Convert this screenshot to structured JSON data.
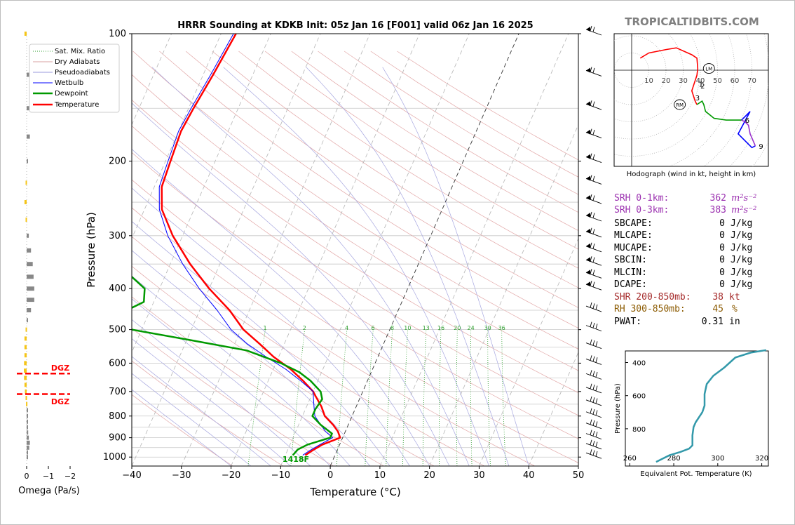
{
  "brand": "TROPICALTIDBITS.COM",
  "main_chart": {
    "title": "HRRR Sounding at KDKB Init: 05z Jan 16 [F001] valid 06z Jan 16 2025",
    "xlabel": "Temperature (°C)",
    "ylabel": "Pressure (hPa)",
    "x_ticks": [
      -40,
      -30,
      -20,
      -10,
      0,
      10,
      20,
      30,
      40,
      50
    ],
    "x_tick_labels": [
      "−40",
      "−30",
      "−20",
      "−10",
      "0",
      "10",
      "20",
      "30",
      "40",
      "50"
    ],
    "y_ticks": [
      100,
      200,
      300,
      400,
      500,
      600,
      700,
      800,
      900,
      1000
    ],
    "xlim": [
      -40,
      50
    ],
    "ylim": [
      1050,
      100
    ],
    "legend": {
      "placement": "top-left",
      "entries": [
        {
          "label": "Sat. Mix. Ratio",
          "color": "#2e9e2e",
          "style": "dotted"
        },
        {
          "label": "Dry Adiabats",
          "color": "#d9a0a0",
          "style": "solid"
        },
        {
          "label": "Pseudoadiabats",
          "color": "#9999dd",
          "style": "solid"
        },
        {
          "label": "Wetbulb",
          "color": "#0000ff",
          "style": "solid"
        },
        {
          "label": "Dewpoint",
          "color": "#009900",
          "style": "solid"
        },
        {
          "label": "Temperature",
          "color": "#ff0000",
          "style": "solid"
        }
      ]
    },
    "mixing_ratio_labels": [
      "1",
      "2",
      "4",
      "6",
      "8",
      "10",
      "13",
      "16",
      "20",
      "24",
      "30",
      "36"
    ],
    "surface_label": "1418F"
  },
  "omega_panel": {
    "xlabel": "Omega (Pa/s)",
    "x_tick_labels": [
      "0",
      "−1",
      "−2"
    ],
    "dgz_label": "DGZ",
    "dgz_top_hpa": 635,
    "dgz_bottom_hpa": 710
  },
  "hodograph": {
    "caption": "Hodograph (wind in kt, height in km)",
    "ring_labels": [
      "10",
      "20",
      "30",
      "40",
      "50",
      "60",
      "70"
    ],
    "height_labels": [
      "1",
      "2",
      "3",
      "6",
      "9"
    ],
    "lm_label": "LM",
    "rm_label": "RM"
  },
  "indices": [
    {
      "label": "SRH 0-1km:",
      "value": "362",
      "unit": "m²s⁻²",
      "color": "#9b30b0"
    },
    {
      "label": "SRH 0-3km:",
      "value": "383",
      "unit": "m²s⁻²",
      "color": "#9b30b0"
    },
    {
      "label": "SBCAPE:",
      "value": "0",
      "unit": "J/kg",
      "color": "#000000"
    },
    {
      "label": "MLCAPE:",
      "value": "0",
      "unit": "J/kg",
      "color": "#000000"
    },
    {
      "label": "MUCAPE:",
      "value": "0",
      "unit": "J/kg",
      "color": "#000000"
    },
    {
      "label": "SBCIN:",
      "value": "0",
      "unit": "J/kg",
      "color": "#000000"
    },
    {
      "label": "MLCIN:",
      "value": "0",
      "unit": "J/kg",
      "color": "#000000"
    },
    {
      "label": "DCAPE:",
      "value": "0",
      "unit": "J/kg",
      "color": "#000000"
    },
    {
      "label": "SHR 200-850mb:",
      "value": "38",
      "unit": "kt",
      "color": "#a52a2a"
    },
    {
      "label": "RH 300-850mb:",
      "value": "45",
      "unit": "%",
      "color": "#8b5a00"
    },
    {
      "label": "PWAT:",
      "value": "0.31",
      "unit": "in",
      "color": "#000000"
    }
  ],
  "theta_e_panel": {
    "xlabel": "Equivalent Pot. Temperature (K)",
    "ylabel": "Pressure (hPa)",
    "x_ticks": [
      260,
      280,
      300,
      320
    ],
    "y_ticks": [
      400,
      600,
      800
    ],
    "y_tick_labels": [
      "400",
      "600",
      "800"
    ],
    "xlim": [
      258,
      323
    ],
    "ylim": [
      1025,
      330
    ],
    "line_color": "#3399aa"
  },
  "chart_data": [
    {
      "type": "line",
      "title": "HRRR Sounding at KDKB Init: 05z Jan 16 [F001] valid 06z Jan 16 2025",
      "xlabel": "Temperature (°C)",
      "ylabel": "Pressure (hPa)",
      "xlim": [
        -40,
        50
      ],
      "ylim": [
        1050,
        100
      ],
      "y_scale": "log",
      "skew": true,
      "grid": true,
      "legend_position": "top-left",
      "series": [
        {
          "name": "Temperature",
          "color": "#ff0000",
          "pressure": [
            990,
            965,
            935,
            900,
            870,
            840,
            800,
            760,
            720,
            700,
            660,
            620,
            580,
            540,
            500,
            450,
            400,
            350,
            300,
            260,
            230,
            200,
            170,
            150,
            125,
            100
          ],
          "values": [
            -6,
            -5,
            -3.5,
            -0.5,
            -1.5,
            -3,
            -5.5,
            -7,
            -9,
            -10,
            -13,
            -16.5,
            -21,
            -25,
            -29.5,
            -34,
            -40,
            -46,
            -52,
            -56.5,
            -58.5,
            -59,
            -59.5,
            -59,
            -58,
            -57
          ]
        },
        {
          "name": "Wetbulb",
          "color": "#0000ff",
          "pressure": [
            990,
            965,
            935,
            900,
            870,
            840,
            800,
            760,
            720,
            700,
            660,
            620,
            580,
            540,
            500,
            450,
            400,
            350,
            300,
            260,
            230,
            200,
            170,
            150,
            125,
            100
          ],
          "values": [
            -6.5,
            -5.5,
            -4,
            -2,
            -4,
            -5.5,
            -7.5,
            -8.5,
            -9.5,
            -10,
            -13.5,
            -17.5,
            -22.5,
            -27.5,
            -32,
            -36.5,
            -42,
            -47.5,
            -53,
            -57,
            -59,
            -59.5,
            -60,
            -59.5,
            -58.5,
            -57.5
          ]
        },
        {
          "name": "Dewpoint",
          "color": "#009900",
          "pressure": [
            990,
            960,
            935,
            900,
            880,
            840,
            800,
            770,
            730,
            700,
            660,
            630,
            600,
            560,
            530,
            500,
            460,
            430,
            400,
            360,
            330,
            300,
            280,
            250,
            220,
            200,
            180,
            160,
            140,
            120,
            100
          ],
          "values": [
            -8.5,
            -8,
            -6.5,
            -2.5,
            -2.5,
            -5.5,
            -8,
            -8,
            -7.5,
            -8.5,
            -11.5,
            -14.5,
            -19,
            -27,
            -39,
            -52,
            -56,
            -52,
            -53,
            -59,
            -68,
            -74,
            -75.5,
            -73,
            -79,
            -79.5,
            -80,
            -80.5,
            -80.5,
            -80,
            -79.5
          ]
        }
      ]
    },
    {
      "type": "scatter",
      "title": "Hodograph",
      "xlabel": "u (kt)",
      "ylabel": "v (kt)",
      "series": [
        {
          "name": "0-1 km",
          "color": "#ff0000",
          "x": [
            5,
            10,
            20,
            26,
            35,
            38,
            38.5,
            38,
            37
          ],
          "y": [
            7,
            10,
            12,
            13,
            9,
            7,
            1,
            -3,
            -6
          ]
        },
        {
          "name": "1-3 km",
          "color": "#ff0000",
          "x": [
            37,
            36,
            35,
            36,
            37,
            38
          ],
          "y": [
            -6,
            -9,
            -12,
            -15,
            -18,
            -20
          ]
        },
        {
          "name": "3-6 km",
          "color": "#009900",
          "x": [
            38,
            41,
            42,
            43,
            48,
            55,
            64
          ],
          "y": [
            -20,
            -18,
            -20,
            -24,
            -28,
            -29,
            -29
          ]
        },
        {
          "name": "6-9 km",
          "color": "#0000ff",
          "x": [
            64,
            69,
            62,
            70,
            72
          ],
          "y": [
            -29,
            -24,
            -37,
            -45,
            -44
          ]
        },
        {
          "name": "9+ km",
          "color": "#9932cc",
          "x": [
            72,
            69,
            68,
            66,
            64
          ],
          "y": [
            -44,
            -37,
            -32,
            -30,
            -29
          ]
        }
      ],
      "markers": [
        {
          "label": "1",
          "x": 37,
          "y": -8
        },
        {
          "label": "2",
          "x": 38,
          "y": -9
        },
        {
          "label": "3",
          "x": 35,
          "y": -16
        },
        {
          "label": "6",
          "x": 64,
          "y": -29
        },
        {
          "label": "9",
          "x": 72,
          "y": -44
        },
        {
          "label": "LM",
          "x": 45,
          "y": 1
        },
        {
          "label": "RM",
          "x": 28,
          "y": -20
        }
      ]
    },
    {
      "type": "line",
      "title": "",
      "xlabel": "Equivalent Pot. Temperature (K)",
      "ylabel": "Pressure (hPa)",
      "xlim": [
        258,
        323
      ],
      "ylim": [
        1025,
        330
      ],
      "series": [
        {
          "name": "",
          "color": "#3399aa",
          "x": [
            272,
            275,
            278,
            283,
            287,
            288.5,
            288.5,
            289,
            290,
            293,
            294,
            294,
            295,
            298,
            303,
            308,
            315,
            322
          ],
          "y": [
            1000,
            980,
            960,
            940,
            920,
            900,
            840,
            790,
            760,
            700,
            660,
            590,
            530,
            480,
            430,
            370,
            340,
            325
          ]
        }
      ]
    },
    {
      "type": "bar",
      "title": "",
      "xlabel": "Omega (Pa/s)",
      "ylabel": "",
      "orientation": "horizontal",
      "xlim": [
        0.3,
        -2.1
      ],
      "pressure": [
        100,
        125,
        150,
        175,
        200,
        225,
        250,
        275,
        300,
        325,
        350,
        375,
        400,
        425,
        450,
        475,
        500,
        525,
        550,
        575,
        600,
        625,
        650,
        675,
        700,
        725,
        750,
        775,
        800,
        825,
        850,
        875,
        900,
        925,
        950,
        975,
        1000
      ],
      "values": [
        0.1,
        -0.15,
        -0.12,
        -0.15,
        -0.05,
        0.05,
        0.1,
        0.05,
        -0.1,
        -0.2,
        -0.28,
        -0.32,
        -0.35,
        -0.35,
        -0.2,
        -0.02,
        0.05,
        0.1,
        0.1,
        0.1,
        0.12,
        0.13,
        0.12,
        0.1,
        0.08,
        0.05,
        0.03,
        -0.02,
        -0.04,
        -0.05,
        -0.06,
        -0.07,
        -0.1,
        -0.15,
        -0.12,
        -0.06,
        -0.04
      ]
    }
  ]
}
